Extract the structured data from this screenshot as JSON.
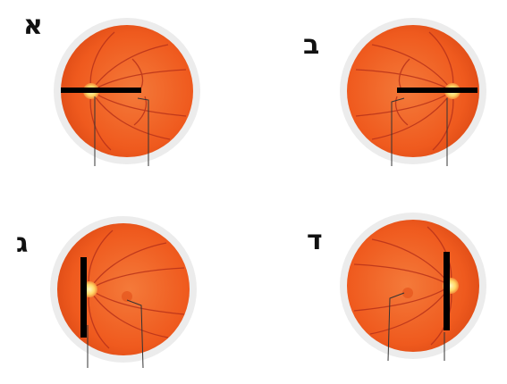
{
  "panels": [
    {
      "id": "a",
      "label": "א",
      "optic_disc": "left",
      "marker": "horizontal"
    },
    {
      "id": "b",
      "label": "ב",
      "optic_disc": "right",
      "marker": "horizontal"
    },
    {
      "id": "c",
      "label": "ג",
      "optic_disc": "left",
      "marker": "vertical"
    },
    {
      "id": "d",
      "label": "ד",
      "optic_disc": "right",
      "marker": "vertical"
    }
  ],
  "colors": {
    "retina": "#ef5a1e",
    "retina_center": "#f47a3a",
    "rim": "#e9e9e9",
    "vessel": "#b8321a",
    "disc": "#fff2a8",
    "marker": "#000000",
    "pointer": "#333333"
  }
}
